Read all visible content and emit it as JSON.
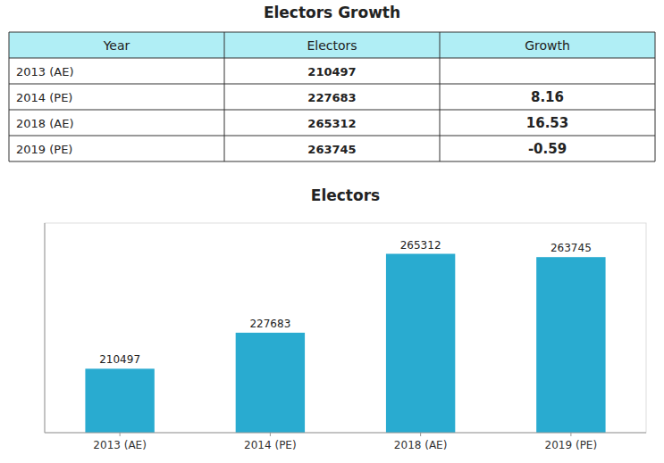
{
  "chart_data": [
    {
      "type": "table",
      "title": "Electors Growth",
      "color": "#B0EEF5",
      "columns": [
        "Year",
        "Electors",
        "Growth"
      ],
      "rows": [
        [
          "2013 (AE)",
          210497,
          null
        ],
        [
          "2014 (PE)",
          227683,
          8.16
        ],
        [
          "2018 (AE)",
          265312,
          16.53
        ],
        [
          "2019 (PE)",
          263745,
          -0.59
        ]
      ]
    },
    {
      "type": "bar",
      "title": "Electors",
      "categories": [
        "2013 (AE)",
        "2014 (PE)",
        "2018 (AE)",
        "2019 (PE)"
      ],
      "values": [
        210497,
        227683,
        265312,
        263745
      ],
      "color": "#29ABD0",
      "ylim": [
        180000,
        280000
      ],
      "data_labels": true,
      "tick_labels": "x",
      "grid": false
    }
  ]
}
